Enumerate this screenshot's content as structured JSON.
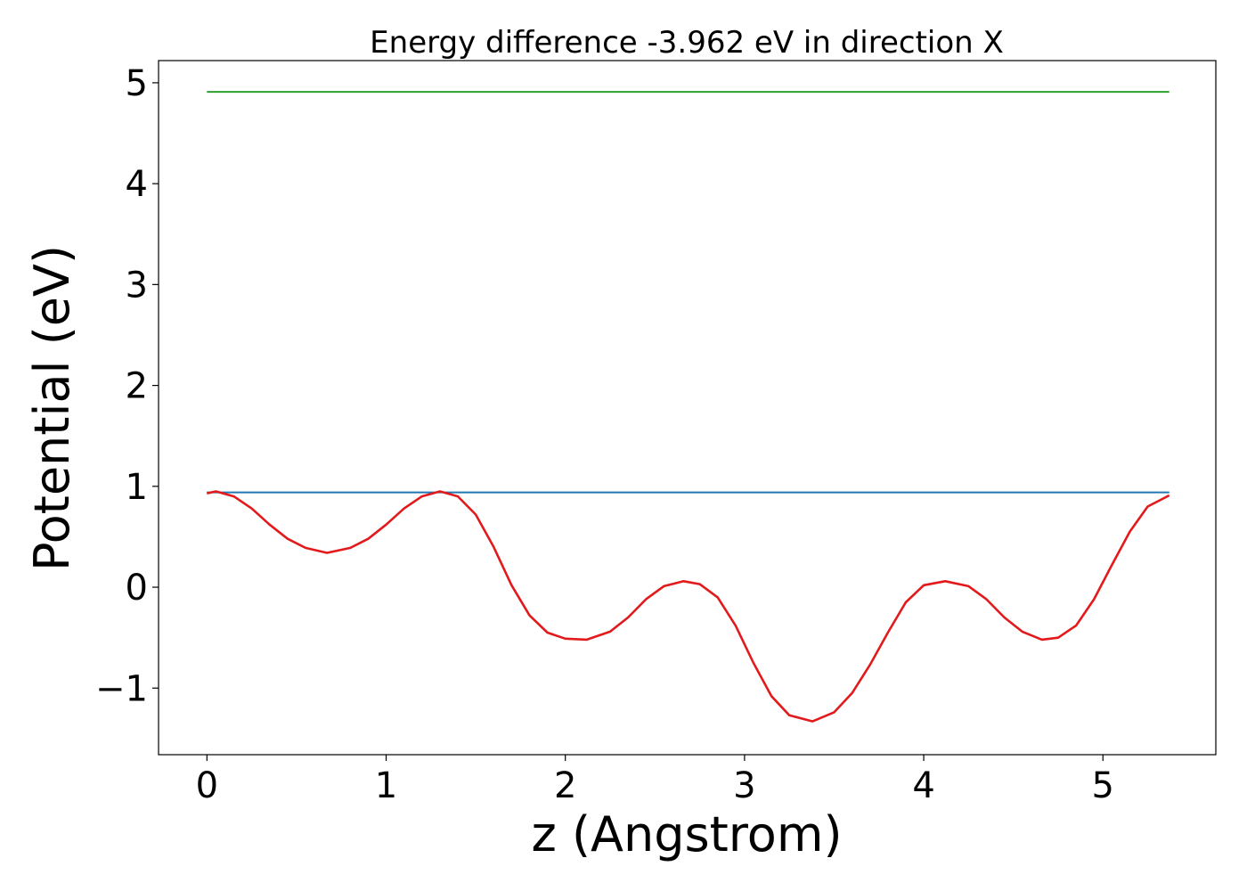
{
  "chart_data": {
    "type": "line",
    "title": "Energy difference -3.962 eV in direction X",
    "xlabel": "z (Angstrom)",
    "ylabel": "Potential (eV)",
    "xlim": [
      -0.27,
      5.63
    ],
    "ylim": [
      -1.66,
      5.22
    ],
    "xticks": [
      0,
      1,
      2,
      3,
      4,
      5
    ],
    "xtick_labels": [
      "0",
      "1",
      "2",
      "3",
      "4",
      "5"
    ],
    "yticks": [
      -1,
      0,
      1,
      2,
      3,
      4,
      5
    ],
    "ytick_labels": [
      "−1",
      "0",
      "1",
      "2",
      "3",
      "4",
      "5"
    ],
    "grid": false,
    "series": [
      {
        "color": "#1f77b4",
        "x": [
          0,
          5.37
        ],
        "y": [
          0.94,
          0.94
        ]
      },
      {
        "color": "#2ca02c",
        "x": [
          0,
          5.37
        ],
        "y": [
          4.91,
          4.91
        ]
      },
      {
        "color": "#e31a1c",
        "x": [
          0.0,
          0.05,
          0.15,
          0.25,
          0.35,
          0.45,
          0.55,
          0.67,
          0.8,
          0.9,
          1.0,
          1.1,
          1.2,
          1.3,
          1.4,
          1.5,
          1.6,
          1.7,
          1.8,
          1.9,
          2.0,
          2.12,
          2.25,
          2.35,
          2.45,
          2.55,
          2.66,
          2.75,
          2.85,
          2.95,
          3.05,
          3.15,
          3.25,
          3.38,
          3.5,
          3.6,
          3.7,
          3.8,
          3.9,
          4.0,
          4.12,
          4.25,
          4.35,
          4.45,
          4.55,
          4.66,
          4.75,
          4.85,
          4.95,
          5.05,
          5.15,
          5.25,
          5.37
        ],
        "y": [
          0.93,
          0.95,
          0.9,
          0.78,
          0.62,
          0.48,
          0.39,
          0.34,
          0.39,
          0.48,
          0.62,
          0.78,
          0.9,
          0.95,
          0.9,
          0.72,
          0.4,
          0.02,
          -0.28,
          -0.45,
          -0.51,
          -0.52,
          -0.44,
          -0.3,
          -0.12,
          0.01,
          0.06,
          0.03,
          -0.1,
          -0.38,
          -0.75,
          -1.08,
          -1.27,
          -1.33,
          -1.24,
          -1.05,
          -0.77,
          -0.45,
          -0.15,
          0.02,
          0.06,
          0.01,
          -0.12,
          -0.3,
          -0.44,
          -0.52,
          -0.5,
          -0.38,
          -0.12,
          0.22,
          0.55,
          0.8,
          0.91
        ]
      }
    ]
  }
}
